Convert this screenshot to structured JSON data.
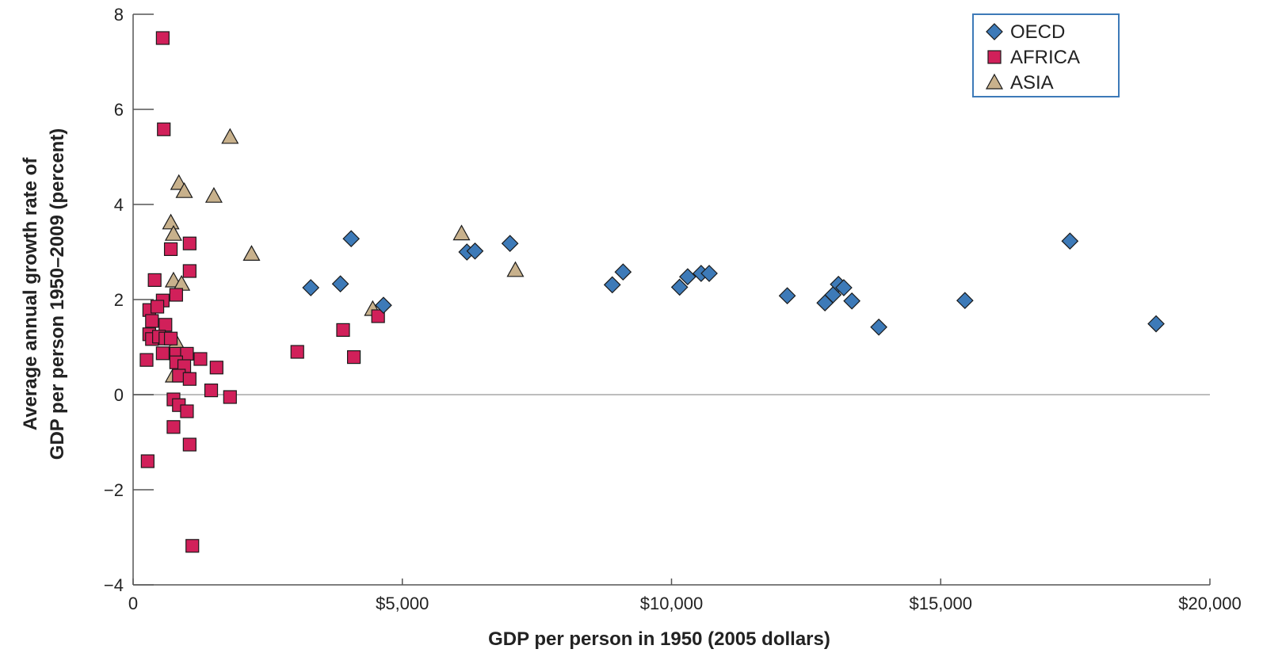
{
  "chart_data": {
    "type": "scatter",
    "title": "",
    "xlabel": "GDP per person in 1950 (2005 dollars)",
    "ylabel": [
      "Average annual growth rate of",
      "GDP per person 1950–2009 (percent)"
    ],
    "xlim": [
      0,
      20000
    ],
    "ylim": [
      -4,
      8
    ],
    "x_ticks": [
      0,
      5000,
      10000,
      15000,
      20000
    ],
    "x_tick_labels": [
      "0",
      "$5,000",
      "$10,000",
      "$15,000",
      "$20,000"
    ],
    "y_ticks": [
      -4,
      -2,
      0,
      2,
      4,
      6,
      8
    ],
    "y_tick_labels": [
      "−4",
      "−2",
      "0",
      "2",
      "4",
      "6",
      "8"
    ],
    "zero_line": true,
    "legend_position": "top-right",
    "series": [
      {
        "name": "OECD",
        "marker": "diamond",
        "color": "#3d7ab8",
        "points": [
          [
            3300,
            2.25
          ],
          [
            3850,
            2.33
          ],
          [
            4050,
            3.28
          ],
          [
            4650,
            1.88
          ],
          [
            6200,
            3.0
          ],
          [
            6350,
            3.02
          ],
          [
            7000,
            3.18
          ],
          [
            8900,
            2.31
          ],
          [
            9100,
            2.58
          ],
          [
            10150,
            2.26
          ],
          [
            10300,
            2.48
          ],
          [
            10550,
            2.55
          ],
          [
            10700,
            2.55
          ],
          [
            12150,
            2.08
          ],
          [
            12850,
            1.93
          ],
          [
            13000,
            2.1
          ],
          [
            13100,
            2.32
          ],
          [
            13200,
            2.25
          ],
          [
            13350,
            1.97
          ],
          [
            13850,
            1.42
          ],
          [
            15450,
            1.98
          ],
          [
            17400,
            3.23
          ],
          [
            19000,
            1.49
          ]
        ]
      },
      {
        "name": "AFRICA",
        "marker": "square",
        "color": "#d1205a",
        "points": [
          [
            550,
            7.5
          ],
          [
            570,
            5.58
          ],
          [
            1050,
            3.18
          ],
          [
            700,
            3.06
          ],
          [
            1050,
            2.6
          ],
          [
            400,
            2.41
          ],
          [
            800,
            2.1
          ],
          [
            550,
            1.98
          ],
          [
            300,
            1.78
          ],
          [
            450,
            1.85
          ],
          [
            350,
            1.55
          ],
          [
            600,
            1.47
          ],
          [
            300,
            1.27
          ],
          [
            350,
            1.17
          ],
          [
            480,
            1.22
          ],
          [
            600,
            1.18
          ],
          [
            700,
            1.18
          ],
          [
            250,
            0.73
          ],
          [
            550,
            0.87
          ],
          [
            800,
            0.86
          ],
          [
            1000,
            0.86
          ],
          [
            1250,
            0.75
          ],
          [
            1550,
            0.57
          ],
          [
            800,
            0.68
          ],
          [
            950,
            0.6
          ],
          [
            850,
            0.4
          ],
          [
            1050,
            0.33
          ],
          [
            1450,
            0.09
          ],
          [
            750,
            -0.1
          ],
          [
            850,
            -0.22
          ],
          [
            1000,
            -0.35
          ],
          [
            1800,
            -0.05
          ],
          [
            750,
            -0.68
          ],
          [
            1050,
            -1.05
          ],
          [
            270,
            -1.4
          ],
          [
            1100,
            -3.18
          ],
          [
            3050,
            0.9
          ],
          [
            3900,
            1.36
          ],
          [
            4100,
            0.79
          ],
          [
            4550,
            1.65
          ]
        ]
      },
      {
        "name": "ASIA",
        "marker": "triangle",
        "color": "#c8b18c",
        "points": [
          [
            1800,
            5.42
          ],
          [
            850,
            4.45
          ],
          [
            950,
            4.28
          ],
          [
            1500,
            4.18
          ],
          [
            700,
            3.62
          ],
          [
            750,
            3.38
          ],
          [
            750,
            2.4
          ],
          [
            900,
            2.33
          ],
          [
            2200,
            2.96
          ],
          [
            4450,
            1.8
          ],
          [
            6100,
            3.39
          ],
          [
            7100,
            2.62
          ],
          [
            800,
            1.1
          ],
          [
            750,
            0.4
          ]
        ]
      }
    ]
  }
}
